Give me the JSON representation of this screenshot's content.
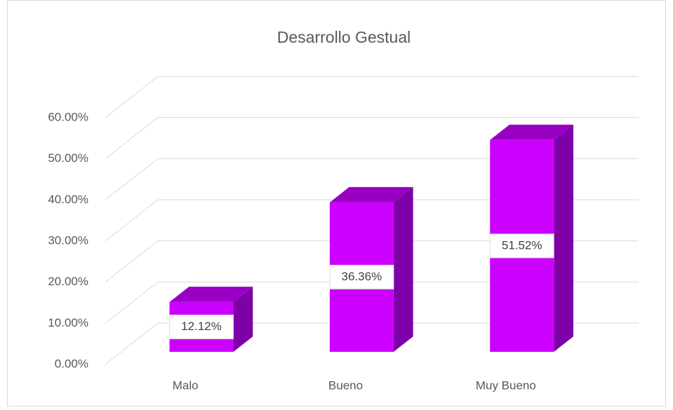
{
  "chart_data": {
    "type": "bar3d",
    "title": "Desarrollo Gestual",
    "categories": [
      "Malo",
      "Bueno",
      "Muy Bueno"
    ],
    "values": [
      12.12,
      36.36,
      51.52
    ],
    "value_labels": [
      "12.12%",
      "36.36%",
      "51.52%"
    ],
    "color": "#cc00ff",
    "ylim": [
      0,
      60
    ],
    "yticks": [
      {
        "value": 0,
        "label": "0.00%"
      },
      {
        "value": 10,
        "label": "10.00%"
      },
      {
        "value": 20,
        "label": "20.00%"
      },
      {
        "value": 30,
        "label": "30.00%"
      },
      {
        "value": 40,
        "label": "40.00%"
      },
      {
        "value": 50,
        "label": "50.00%"
      },
      {
        "value": 60,
        "label": "60.00%"
      }
    ],
    "grid": true
  }
}
